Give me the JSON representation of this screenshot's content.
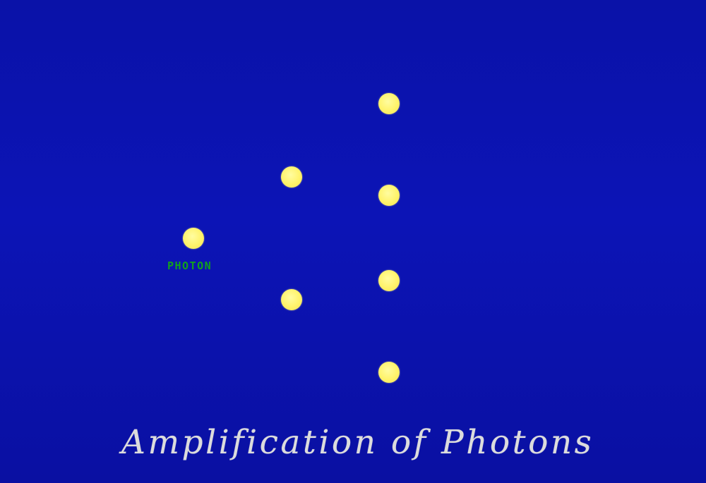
{
  "photon_label": "PHOTON",
  "title": "Amplification of Photons",
  "colors": {
    "background": "#0c14b6",
    "photon": "#fff36a",
    "label": "#12a21c",
    "title": "#dcdcdc"
  },
  "diagram": {
    "generations": [
      {
        "stage": 1,
        "photon_count": 1
      },
      {
        "stage": 2,
        "photon_count": 2
      },
      {
        "stage": 3,
        "photon_count": 4
      }
    ]
  }
}
